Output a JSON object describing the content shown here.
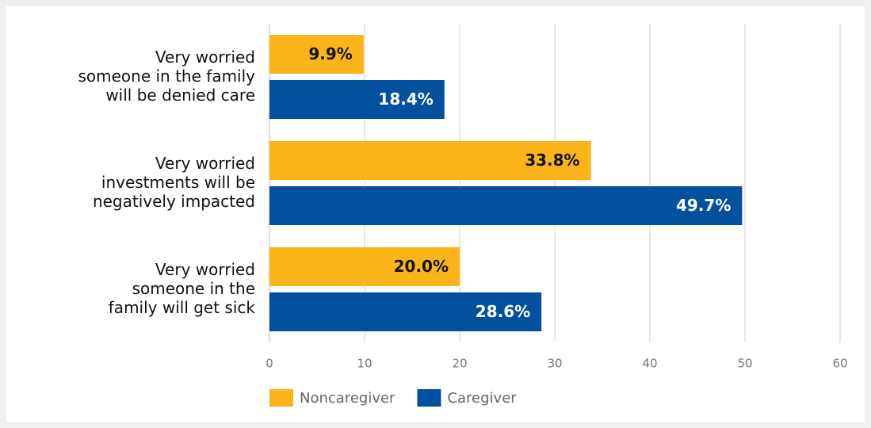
{
  "chart_data": {
    "type": "bar",
    "orientation": "horizontal",
    "categories": [
      "Very worried\nsomeone in the family\nwill be denied care",
      "Very worried\ninvestments will be\nnegatively impacted",
      "Very worried\nsomeone in the\nfamily will get sick"
    ],
    "series": [
      {
        "name": "Noncaregiver",
        "color": "#fbb51a",
        "values": [
          9.9,
          33.8,
          20.0
        ],
        "value_labels": [
          "9.9%",
          "33.8%",
          "20.0%"
        ]
      },
      {
        "name": "Caregiver",
        "color": "#03509f",
        "values": [
          18.4,
          49.7,
          28.6
        ],
        "value_labels": [
          "18.4%",
          "49.7%",
          "28.6%"
        ]
      }
    ],
    "xlim": [
      0,
      60
    ],
    "xticks": [
      0,
      10,
      20,
      30,
      40,
      50,
      60
    ],
    "grid": true,
    "legend": "bottom"
  }
}
